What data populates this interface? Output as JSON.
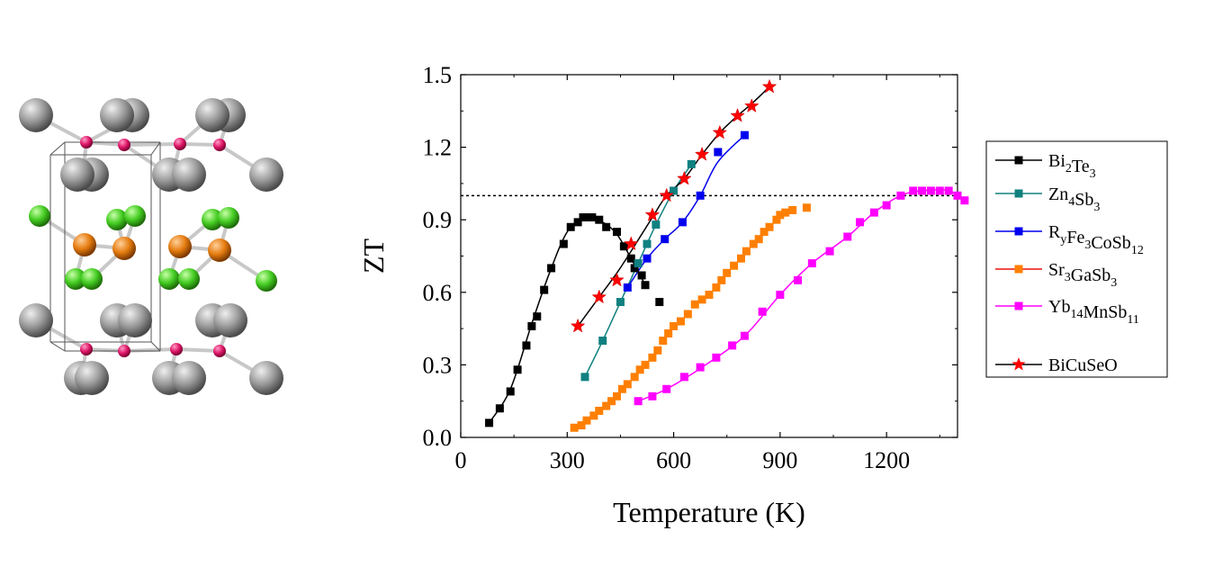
{
  "crystal_structure": {
    "description_hidden": "",
    "colors": {
      "large_atom": "#9a9a9a",
      "small_atom": "#e0186a",
      "orange_atom": "#e57c10",
      "green_atom": "#44cc22",
      "bond": "#c8c8c8",
      "cell": "#555555"
    }
  },
  "chart_data": {
    "type": "scatter",
    "title": "",
    "xlabel": "Temperature (K)",
    "ylabel": "ZT",
    "xlim": [
      0,
      1400
    ],
    "ylim": [
      0,
      1.5
    ],
    "xticks": [
      "0",
      "300",
      "600",
      "900",
      "1200"
    ],
    "yticks": [
      "0.0",
      "0.3",
      "0.6",
      "0.9",
      "1.2",
      "1.5"
    ],
    "reference_line": {
      "y": 1.0,
      "style": "dotted"
    },
    "legend_position": "right-outside",
    "series": [
      {
        "name": "Bi2Te3",
        "legend_main": [
          "Bi",
          "Te",
          ""
        ],
        "legend_subs": [
          "2",
          "3"
        ],
        "color": "#000000",
        "marker": "square",
        "points": [
          [
            80,
            0.06
          ],
          [
            110,
            0.12
          ],
          [
            140,
            0.19
          ],
          [
            160,
            0.28
          ],
          [
            185,
            0.38
          ],
          [
            200,
            0.46
          ],
          [
            215,
            0.5
          ],
          [
            235,
            0.61
          ],
          [
            255,
            0.7
          ],
          [
            290,
            0.8
          ],
          [
            310,
            0.87
          ],
          [
            330,
            0.89
          ],
          [
            345,
            0.91
          ],
          [
            360,
            0.91
          ],
          [
            370,
            0.91
          ],
          [
            390,
            0.9
          ],
          [
            410,
            0.87
          ],
          [
            440,
            0.85
          ],
          [
            460,
            0.79
          ],
          [
            480,
            0.74
          ],
          [
            490,
            0.7
          ],
          [
            510,
            0.67
          ],
          [
            520,
            0.63
          ],
          [
            560,
            0.56
          ]
        ],
        "curve": [
          [
            80,
            0.06
          ],
          [
            140,
            0.2
          ],
          [
            200,
            0.47
          ],
          [
            250,
            0.68
          ],
          [
            300,
            0.85
          ],
          [
            350,
            0.91
          ],
          [
            400,
            0.89
          ],
          [
            440,
            0.84
          ],
          [
            480,
            0.74
          ],
          [
            520,
            0.63
          ]
        ]
      },
      {
        "name": "Zn4Sb3",
        "legend_main": [
          "Zn",
          "Sb",
          ""
        ],
        "legend_subs": [
          "4",
          "3"
        ],
        "color": "#108080",
        "marker": "square",
        "points": [
          [
            350,
            0.25
          ],
          [
            400,
            0.4
          ],
          [
            450,
            0.56
          ],
          [
            500,
            0.72
          ],
          [
            525,
            0.8
          ],
          [
            550,
            0.88
          ],
          [
            600,
            1.02
          ],
          [
            650,
            1.13
          ]
        ],
        "curve": [
          [
            350,
            0.25
          ],
          [
            400,
            0.4
          ],
          [
            450,
            0.56
          ],
          [
            500,
            0.72
          ],
          [
            550,
            0.88
          ],
          [
            600,
            1.02
          ],
          [
            650,
            1.13
          ]
        ]
      },
      {
        "name": "RyFe3CoSb12",
        "legend_main": [
          "R",
          "Fe",
          "CoSb",
          ""
        ],
        "legend_subs": [
          "y",
          "3",
          "12"
        ],
        "color": "#0000ee",
        "marker": "square",
        "points": [
          [
            470,
            0.62
          ],
          [
            525,
            0.74
          ],
          [
            575,
            0.82
          ],
          [
            625,
            0.89
          ],
          [
            675,
            1.0
          ],
          [
            725,
            1.18
          ],
          [
            800,
            1.25
          ]
        ],
        "curve": [
          [
            470,
            0.62
          ],
          [
            525,
            0.74
          ],
          [
            575,
            0.82
          ],
          [
            625,
            0.89
          ],
          [
            675,
            1.0
          ],
          [
            725,
            1.14
          ],
          [
            800,
            1.25
          ]
        ]
      },
      {
        "name": "Sr3GaSb3",
        "legend_main": [
          "Sr",
          "GaSb",
          ""
        ],
        "legend_subs": [
          "3",
          "3"
        ],
        "color": "#ff7f00",
        "line_color": "#ee1111",
        "marker": "square",
        "points": [
          [
            320,
            0.04
          ],
          [
            340,
            0.05
          ],
          [
            355,
            0.07
          ],
          [
            375,
            0.09
          ],
          [
            390,
            0.11
          ],
          [
            410,
            0.13
          ],
          [
            425,
            0.15
          ],
          [
            440,
            0.17
          ],
          [
            455,
            0.2
          ],
          [
            470,
            0.22
          ],
          [
            490,
            0.25
          ],
          [
            505,
            0.28
          ],
          [
            520,
            0.3
          ],
          [
            540,
            0.33
          ],
          [
            555,
            0.36
          ],
          [
            570,
            0.4
          ],
          [
            585,
            0.43
          ],
          [
            600,
            0.46
          ],
          [
            620,
            0.48
          ],
          [
            640,
            0.51
          ],
          [
            660,
            0.55
          ],
          [
            680,
            0.57
          ],
          [
            700,
            0.59
          ],
          [
            720,
            0.62
          ],
          [
            735,
            0.65
          ],
          [
            750,
            0.68
          ],
          [
            770,
            0.71
          ],
          [
            790,
            0.74
          ],
          [
            805,
            0.77
          ],
          [
            825,
            0.8
          ],
          [
            840,
            0.82
          ],
          [
            855,
            0.85
          ],
          [
            870,
            0.87
          ],
          [
            890,
            0.9
          ],
          [
            900,
            0.92
          ],
          [
            915,
            0.93
          ],
          [
            935,
            0.94
          ],
          [
            975,
            0.95
          ]
        ],
        "curve": []
      },
      {
        "name": "Yb14MnSb11",
        "legend_main": [
          "Yb",
          "MnSb",
          ""
        ],
        "legend_subs": [
          "14",
          "11"
        ],
        "color": "#ff00ff",
        "marker": "square",
        "points": [
          [
            500,
            0.15
          ],
          [
            540,
            0.17
          ],
          [
            580,
            0.2
          ],
          [
            630,
            0.25
          ],
          [
            675,
            0.29
          ],
          [
            720,
            0.33
          ],
          [
            765,
            0.38
          ],
          [
            800,
            0.42
          ],
          [
            850,
            0.52
          ],
          [
            900,
            0.59
          ],
          [
            950,
            0.65
          ],
          [
            990,
            0.72
          ],
          [
            1040,
            0.77
          ],
          [
            1090,
            0.83
          ],
          [
            1125,
            0.89
          ],
          [
            1165,
            0.93
          ],
          [
            1200,
            0.96
          ],
          [
            1240,
            1.0
          ],
          [
            1275,
            1.02
          ],
          [
            1300,
            1.02
          ],
          [
            1325,
            1.02
          ],
          [
            1350,
            1.02
          ],
          [
            1375,
            1.02
          ],
          [
            1400,
            1.0
          ],
          [
            1420,
            0.98
          ]
        ],
        "curve": [
          [
            500,
            0.15
          ],
          [
            580,
            0.2
          ],
          [
            680,
            0.29
          ],
          [
            800,
            0.42
          ],
          [
            900,
            0.59
          ],
          [
            990,
            0.72
          ],
          [
            1090,
            0.83
          ],
          [
            1165,
            0.93
          ],
          [
            1240,
            1.0
          ],
          [
            1300,
            1.02
          ],
          [
            1375,
            1.02
          ],
          [
            1420,
            0.98
          ]
        ]
      },
      {
        "name": "BiCuSeO",
        "legend_main": [
          "BiCuSeO"
        ],
        "legend_subs": [],
        "color": "#ff0000",
        "line_color": "#000000",
        "marker": "star",
        "points": [
          [
            330,
            0.46
          ],
          [
            390,
            0.58
          ],
          [
            440,
            0.65
          ],
          [
            480,
            0.8
          ],
          [
            540,
            0.92
          ],
          [
            580,
            1.0
          ],
          [
            630,
            1.07
          ],
          [
            680,
            1.17
          ],
          [
            730,
            1.26
          ],
          [
            780,
            1.33
          ],
          [
            820,
            1.37
          ],
          [
            870,
            1.45
          ]
        ],
        "curve": [
          [
            330,
            0.46
          ],
          [
            390,
            0.58
          ],
          [
            440,
            0.68
          ],
          [
            480,
            0.77
          ],
          [
            540,
            0.91
          ],
          [
            580,
            1.0
          ],
          [
            630,
            1.07
          ],
          [
            680,
            1.17
          ],
          [
            730,
            1.26
          ],
          [
            780,
            1.33
          ],
          [
            820,
            1.38
          ],
          [
            870,
            1.45
          ]
        ]
      }
    ]
  }
}
